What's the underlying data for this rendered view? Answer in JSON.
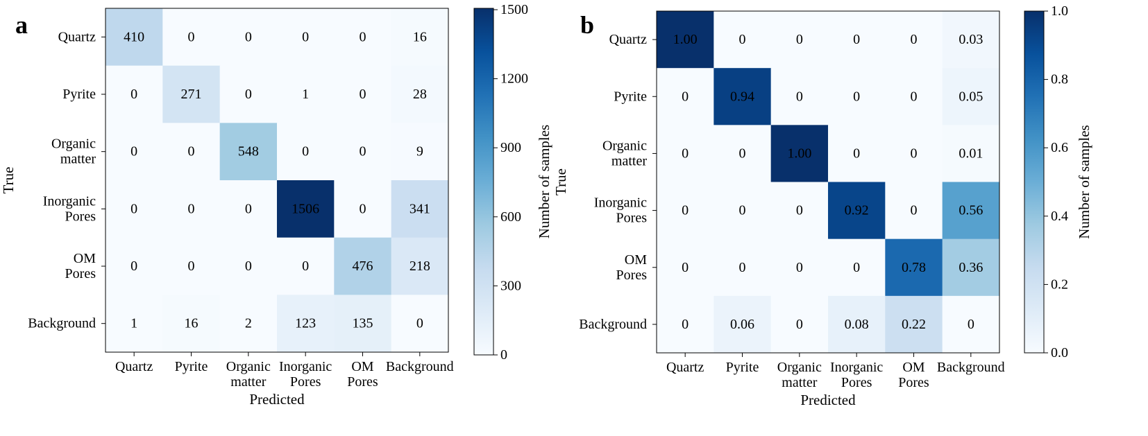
{
  "chart_data": [
    {
      "type": "heatmap",
      "panel": "a",
      "xlabel": "Predicted",
      "ylabel": "True",
      "rows": [
        "Quartz",
        "Pyrite",
        "Organic\nmatter",
        "Inorganic\nPores",
        "OM\nPores",
        "Background"
      ],
      "cols": [
        "Quartz",
        "Pyrite",
        "Organic\nmatter",
        "Inorganic\nPores",
        "OM\nPores",
        "Background"
      ],
      "values": [
        [
          410,
          0,
          0,
          0,
          0,
          16
        ],
        [
          0,
          271,
          0,
          1,
          0,
          28
        ],
        [
          0,
          0,
          548,
          0,
          0,
          9
        ],
        [
          0,
          0,
          0,
          1506,
          0,
          341
        ],
        [
          0,
          0,
          0,
          0,
          476,
          218
        ],
        [
          1,
          16,
          2,
          123,
          135,
          0
        ]
      ],
      "value_labels": [
        [
          "410",
          "0",
          "0",
          "0",
          "0",
          "16"
        ],
        [
          "0",
          "271",
          "0",
          "1",
          "0",
          "28"
        ],
        [
          "0",
          "0",
          "548",
          "0",
          "0",
          "9"
        ],
        [
          "0",
          "0",
          "0",
          "1506",
          "0",
          "341"
        ],
        [
          "0",
          "0",
          "0",
          "0",
          "476",
          "218"
        ],
        [
          "1",
          "16",
          "2",
          "123",
          "135",
          "0"
        ]
      ],
      "colorbar": {
        "label": "Number of samples",
        "range": [
          0,
          1506
        ],
        "ticks": [
          0,
          300,
          600,
          900,
          1200,
          1500
        ],
        "tick_labels": [
          "0",
          "300",
          "600",
          "900",
          "1200",
          "1500"
        ]
      }
    },
    {
      "type": "heatmap",
      "panel": "b",
      "xlabel": "Predicted",
      "ylabel": "True",
      "rows": [
        "Quartz",
        "Pyrite",
        "Organic\nmatter",
        "Inorganic\nPores",
        "OM\nPores",
        "Background"
      ],
      "cols": [
        "Quartz",
        "Pyrite",
        "Organic\nmatter",
        "Inorganic\nPores",
        "OM\nPores",
        "Background"
      ],
      "values": [
        [
          1.0,
          0,
          0,
          0,
          0,
          0.03
        ],
        [
          0,
          0.94,
          0,
          0,
          0,
          0.05
        ],
        [
          0,
          0,
          1.0,
          0,
          0,
          0.01
        ],
        [
          0,
          0,
          0,
          0.92,
          0,
          0.56
        ],
        [
          0,
          0,
          0,
          0,
          0.78,
          0.36
        ],
        [
          0,
          0.06,
          0,
          0.08,
          0.22,
          0
        ]
      ],
      "value_labels": [
        [
          "1.00",
          "0",
          "0",
          "0",
          "0",
          "0.03"
        ],
        [
          "0",
          "0.94",
          "0",
          "0",
          "0",
          "0.05"
        ],
        [
          "0",
          "0",
          "1.00",
          "0",
          "0",
          "0.01"
        ],
        [
          "0",
          "0",
          "0",
          "0.92",
          "0",
          "0.56"
        ],
        [
          "0",
          "0",
          "0",
          "0",
          "0.78",
          "0.36"
        ],
        [
          "0",
          "0.06",
          "0",
          "0.08",
          "0.22",
          "0"
        ]
      ],
      "colorbar": {
        "label": "Number of samples",
        "range": [
          0,
          1
        ],
        "ticks": [
          0,
          0.2,
          0.4,
          0.6,
          0.8,
          1.0
        ],
        "tick_labels": [
          "0.0",
          "0.2",
          "0.4",
          "0.6",
          "0.8",
          "1.0"
        ]
      }
    }
  ]
}
